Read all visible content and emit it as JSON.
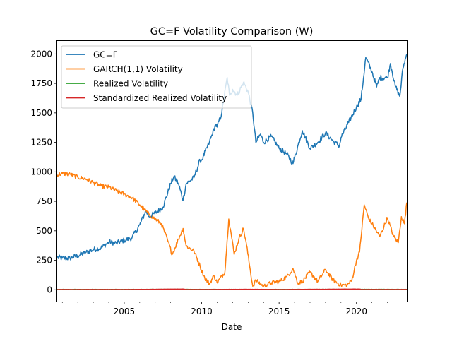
{
  "chart_data": {
    "type": "line",
    "title": "GC=F Volatility Comparison (W)",
    "xlabel": "Date",
    "ylabel": "",
    "xlim": [
      2000.67,
      2023.25
    ],
    "ylim": [
      -100,
      2110
    ],
    "xticks": [
      2005,
      2010,
      2015,
      2020
    ],
    "xtick_labels": [
      "2005",
      "2010",
      "2015",
      "2020"
    ],
    "yticks": [
      0,
      250,
      500,
      750,
      1000,
      1250,
      1500,
      1750,
      2000
    ],
    "ytick_labels": [
      "0",
      "250",
      "500",
      "750",
      "1000",
      "1250",
      "1500",
      "1750",
      "2000"
    ],
    "grid": false,
    "legend_position": "upper-left",
    "series": [
      {
        "name": "GC=F",
        "color": "#1f77b4",
        "x": [
          2000.67,
          2001.0,
          2001.5,
          2002.0,
          2002.5,
          2003.0,
          2003.5,
          2004.0,
          2004.5,
          2005.0,
          2005.5,
          2006.0,
          2006.4,
          2006.6,
          2007.0,
          2007.5,
          2008.0,
          2008.2,
          2008.5,
          2008.8,
          2009.0,
          2009.5,
          2009.9,
          2010.0,
          2010.5,
          2010.9,
          2011.0,
          2011.3,
          2011.65,
          2011.8,
          2012.0,
          2012.3,
          2012.7,
          2013.0,
          2013.3,
          2013.5,
          2013.8,
          2014.0,
          2014.5,
          2015.0,
          2015.5,
          2015.9,
          2016.0,
          2016.5,
          2017.0,
          2017.5,
          2018.0,
          2018.5,
          2018.9,
          2019.0,
          2019.5,
          2020.0,
          2020.3,
          2020.6,
          2021.0,
          2021.3,
          2021.5,
          2022.0,
          2022.2,
          2022.5,
          2022.8,
          2023.0,
          2023.25
        ],
        "values": [
          275,
          268,
          268,
          290,
          315,
          340,
          355,
          405,
          395,
          420,
          440,
          550,
          670,
          620,
          650,
          700,
          900,
          960,
          900,
          760,
          900,
          950,
          1100,
          1100,
          1250,
          1400,
          1380,
          1500,
          1800,
          1650,
          1700,
          1650,
          1760,
          1680,
          1500,
          1250,
          1320,
          1250,
          1300,
          1200,
          1150,
          1070,
          1120,
          1350,
          1200,
          1250,
          1330,
          1260,
          1220,
          1290,
          1420,
          1550,
          1620,
          1970,
          1850,
          1720,
          1800,
          1800,
          1920,
          1730,
          1640,
          1880,
          2000
        ]
      },
      {
        "name": "GARCH(1,1) Volatility",
        "color": "#ff7f0e",
        "x": [
          2000.67,
          2001.0,
          2001.5,
          2002.0,
          2002.5,
          2003.0,
          2003.5,
          2004.0,
          2004.5,
          2005.0,
          2005.5,
          2006.0,
          2006.3,
          2006.6,
          2007.0,
          2007.4,
          2007.8,
          2008.1,
          2008.5,
          2008.8,
          2009.0,
          2009.5,
          2009.9,
          2010.2,
          2010.5,
          2010.8,
          2011.0,
          2011.5,
          2011.75,
          2011.9,
          2012.1,
          2012.4,
          2012.7,
          2012.9,
          2013.1,
          2013.3,
          2013.5,
          2013.8,
          2014.0,
          2014.5,
          2015.0,
          2015.5,
          2015.9,
          2016.2,
          2016.5,
          2017.0,
          2017.5,
          2018.0,
          2018.5,
          2019.0,
          2019.4,
          2019.7,
          2020.0,
          2020.2,
          2020.5,
          2020.8,
          2021.0,
          2021.5,
          2022.0,
          2022.4,
          2022.7,
          2022.9,
          2023.1,
          2023.25
        ],
        "values": [
          975,
          985,
          980,
          955,
          940,
          910,
          880,
          870,
          840,
          810,
          780,
          720,
          680,
          640,
          600,
          560,
          420,
          300,
          430,
          520,
          370,
          330,
          200,
          100,
          50,
          120,
          60,
          150,
          600,
          480,
          300,
          430,
          520,
          380,
          200,
          30,
          80,
          50,
          30,
          60,
          70,
          110,
          180,
          60,
          70,
          150,
          70,
          170,
          80,
          40,
          40,
          80,
          250,
          320,
          720,
          600,
          560,
          450,
          610,
          450,
          400,
          620,
          560,
          740
        ]
      },
      {
        "name": "Realized Volatility",
        "color": "#2ca02c",
        "x": [
          2000.67,
          2005.0,
          2008.8,
          2010.0,
          2013.0,
          2015.0,
          2020.0,
          2023.25
        ],
        "values": [
          3,
          3,
          4,
          3,
          3,
          3,
          4,
          3
        ]
      },
      {
        "name": "Standardized Realized Volatility",
        "color": "#d62728",
        "x": [
          2000.67,
          2005.0,
          2008.8,
          2009.0,
          2010.0,
          2013.0,
          2015.0,
          2020.2,
          2020.3,
          2023.25
        ],
        "values": [
          2,
          2,
          6,
          2,
          2,
          4,
          2,
          6,
          2,
          2
        ]
      }
    ]
  }
}
